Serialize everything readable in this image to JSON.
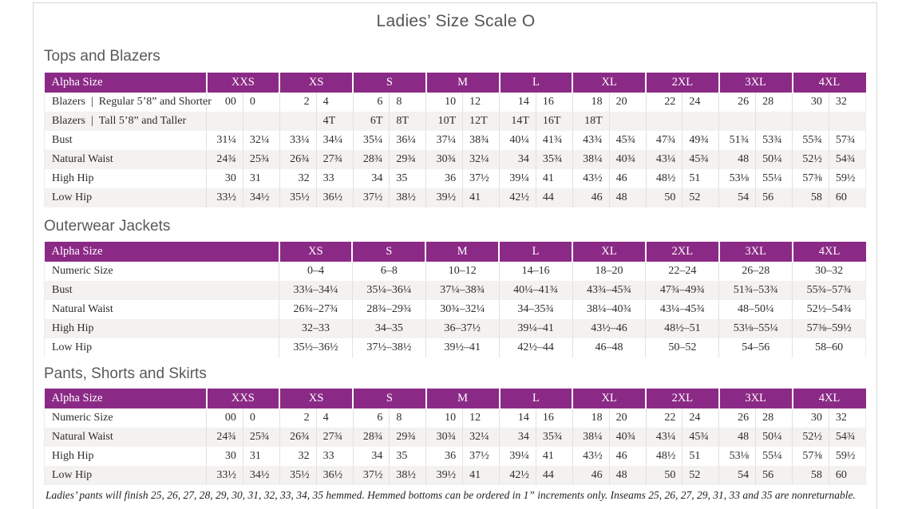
{
  "page": {
    "title": "Ladies’ Size Scale O",
    "footnote": "Ladies’ pants will finish 25, 26, 27, 28, 29, 30, 31, 32, 33, 34, 35 hemmed. Hemmed bottoms can be ordered in 1” increments only. Inseams 25, 26, 27, 29, 31, 33 and 35 are nonreturnable."
  },
  "colors": {
    "header_purple": "#8b2a86",
    "row_stripe": "#f3f2f0",
    "divider_gray": "#e3e1e0"
  },
  "tops_table": {
    "heading": "Tops and Blazers",
    "label_header": "Alpha Size",
    "size_headers": [
      "XXS",
      "XS",
      "S",
      "M",
      "L",
      "XL",
      "2XL",
      "3XL",
      "4XL"
    ],
    "rows": [
      {
        "label": "Blazers  |  Regular 5’8” and Shorter",
        "values": [
          "00",
          "0",
          "2",
          "4",
          "6",
          "8",
          "10",
          "12",
          "14",
          "16",
          "18",
          "20",
          "22",
          "24",
          "26",
          "28",
          "30",
          "32"
        ]
      },
      {
        "label": "Blazers  |  Tall 5’8” and Taller",
        "values": [
          "",
          "",
          "",
          "4T",
          "6T",
          "8T",
          "10T",
          "12T",
          "14T",
          "16T",
          "18T",
          "",
          "",
          "",
          "",
          "",
          "",
          ""
        ]
      },
      {
        "label": "Bust",
        "values": [
          "31¼",
          "32¼",
          "33¼",
          "34¼",
          "35¼",
          "36¼",
          "37¼",
          "38¾",
          "40¼",
          "41¾",
          "43¾",
          "45¾",
          "47¾",
          "49¾",
          "51¾",
          "53¾",
          "55¾",
          "57¾"
        ]
      },
      {
        "label": "Natural Waist",
        "values": [
          "24¾",
          "25¾",
          "26¾",
          "27¾",
          "28¾",
          "29¾",
          "30¾",
          "32¼",
          "34",
          "35¾",
          "38¼",
          "40¾",
          "43¼",
          "45¾",
          "48",
          "50¼",
          "52½",
          "54¾"
        ]
      },
      {
        "label": "High Hip",
        "values": [
          "30",
          "31",
          "32",
          "33",
          "34",
          "35",
          "36",
          "37½",
          "39¼",
          "41",
          "43½",
          "46",
          "48½",
          "51",
          "53⅛",
          "55¼",
          "57⅜",
          "59½"
        ]
      },
      {
        "label": "Low Hip",
        "values": [
          "33½",
          "34½",
          "35½",
          "36½",
          "37½",
          "38½",
          "39½",
          "41",
          "42½",
          "44",
          "46",
          "48",
          "50",
          "52",
          "54",
          "56",
          "58",
          "60"
        ]
      }
    ]
  },
  "outerwear_table": {
    "heading": "Outerwear Jackets",
    "label_header": "Alpha Size",
    "size_headers": [
      "XS",
      "S",
      "M",
      "L",
      "XL",
      "2XL",
      "3XL",
      "4XL"
    ],
    "rows": [
      {
        "label": "Numeric Size",
        "values": [
          "0–4",
          "6–8",
          "10–12",
          "14–16",
          "18–20",
          "22–24",
          "26–28",
          "30–32"
        ]
      },
      {
        "label": "Bust",
        "values": [
          "33¼–34¼",
          "35¼–36¼",
          "37¼–38¾",
          "40¼–41¾",
          "43¾–45¾",
          "47¾–49¾",
          "51¾–53¾",
          "55¾–57¾"
        ]
      },
      {
        "label": "Natural Waist",
        "values": [
          "26¾–27¾",
          "28¾–29¾",
          "30¾–32¼",
          "34–35¾",
          "38¼–40¾",
          "43¼–45¾",
          "48–50¼",
          "52½–54¾"
        ]
      },
      {
        "label": "High Hip",
        "values": [
          "32–33",
          "34–35",
          "36–37½",
          "39¼–41",
          "43½–46",
          "48½–51",
          "53⅛–55¼",
          "57⅜–59½"
        ]
      },
      {
        "label": "Low Hip",
        "values": [
          "35½–36½",
          "37½–38½",
          "39½–41",
          "42½–44",
          "46–48",
          "50–52",
          "54–56",
          "58–60"
        ]
      }
    ]
  },
  "pants_table": {
    "heading": "Pants, Shorts and Skirts",
    "label_header": "Alpha Size",
    "size_headers": [
      "XXS",
      "XS",
      "S",
      "M",
      "L",
      "XL",
      "2XL",
      "3XL",
      "4XL"
    ],
    "rows": [
      {
        "label": "Numeric Size",
        "values": [
          "00",
          "0",
          "2",
          "4",
          "6",
          "8",
          "10",
          "12",
          "14",
          "16",
          "18",
          "20",
          "22",
          "24",
          "26",
          "28",
          "30",
          "32"
        ]
      },
      {
        "label": "Natural Waist",
        "values": [
          "24¾",
          "25¾",
          "26¾",
          "27¾",
          "28¾",
          "29¾",
          "30¾",
          "32¼",
          "34",
          "35¾",
          "38¼",
          "40¾",
          "43¼",
          "45¾",
          "48",
          "50¼",
          "52½",
          "54¾"
        ]
      },
      {
        "label": "High Hip",
        "values": [
          "30",
          "31",
          "32",
          "33",
          "34",
          "35",
          "36",
          "37½",
          "39¼",
          "41",
          "43½",
          "46",
          "48½",
          "51",
          "53⅛",
          "55¼",
          "57⅜",
          "59½"
        ]
      },
      {
        "label": "Low Hip",
        "values": [
          "33½",
          "34½",
          "35½",
          "36½",
          "37½",
          "38½",
          "39½",
          "41",
          "42½",
          "44",
          "46",
          "48",
          "50",
          "52",
          "54",
          "56",
          "58",
          "60"
        ]
      }
    ]
  }
}
